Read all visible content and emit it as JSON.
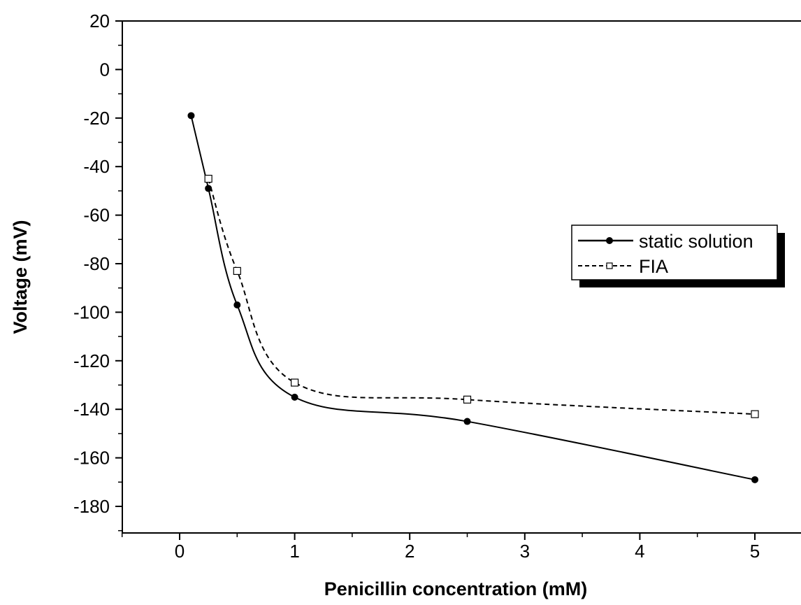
{
  "chart_data": {
    "type": "line",
    "title": "",
    "xlabel": "Penicillin concentration (mM)",
    "ylabel": "Voltage (mV)",
    "xlim": [
      -0.5,
      5.45
    ],
    "ylim": [
      -190,
      20
    ],
    "xticks": [
      0,
      1,
      2,
      3,
      4,
      5
    ],
    "xtick_labels": [
      "0",
      "1",
      "2",
      "3",
      "4",
      "5"
    ],
    "yticks": [
      20,
      0,
      -20,
      -40,
      -60,
      -80,
      -100,
      -120,
      -140,
      -160,
      -180
    ],
    "ytick_labels": [
      "20",
      "0",
      "-20",
      "-40",
      "-60",
      "-80",
      "-100",
      "-120",
      "-140",
      "-160",
      "-180"
    ],
    "grid": false,
    "legend_position": "right",
    "series": [
      {
        "name": "static solution",
        "marker": "filled-circle",
        "line_style": "solid",
        "color": "#000000",
        "x": [
          0.1,
          0.25,
          0.5,
          1,
          2.5,
          5
        ],
        "y": [
          -19,
          -49,
          -97,
          -135,
          -145,
          -169
        ]
      },
      {
        "name": "FIA",
        "marker": "open-square",
        "line_style": "dashed",
        "color": "#000000",
        "x": [
          0.25,
          0.5,
          1,
          2.5,
          5
        ],
        "y": [
          -45,
          -83,
          -129,
          -136,
          -142
        ]
      }
    ]
  }
}
